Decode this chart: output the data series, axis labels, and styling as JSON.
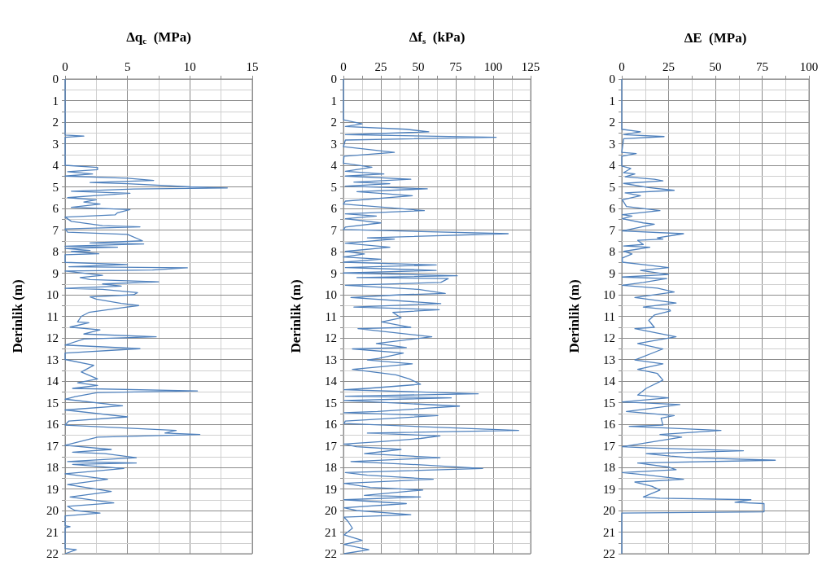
{
  "chart_data": [
    {
      "type": "line",
      "xlabel": "Δq$_{c}$  (MPa)",
      "ylabel": "Derinlik (m)",
      "grid": true,
      "marker": "none",
      "line_style": "solid",
      "xlim": [
        0,
        15
      ],
      "xticks": [
        0,
        {
          "value": 2.5,
          "label": null
        },
        5,
        {
          "value": 7.5,
          "label": null
        },
        10,
        {
          "value": 12.5,
          "label": null
        },
        15
      ],
      "ylim": [
        22,
        0
      ],
      "yticks": [
        0,
        {
          "value": 0.5,
          "label": null
        },
        1,
        {
          "value": 1.5,
          "label": null
        },
        2,
        {
          "value": 2.5,
          "label": null
        },
        3,
        {
          "value": 3.5,
          "label": null
        },
        4,
        {
          "value": 4.5,
          "label": null
        },
        5,
        {
          "value": 5.5,
          "label": null
        },
        6,
        {
          "value": 6.5,
          "label": null
        },
        7,
        {
          "value": 7.5,
          "label": null
        },
        8,
        {
          "value": 8.5,
          "label": null
        },
        9,
        {
          "value": 9.5,
          "label": null
        },
        10,
        {
          "value": 10.5,
          "label": null
        },
        11,
        {
          "value": 11.5,
          "label": null
        },
        12,
        {
          "value": 12.5,
          "label": null
        },
        13,
        {
          "value": 13.5,
          "label": null
        },
        14,
        {
          "value": 14.5,
          "label": null
        },
        15,
        {
          "value": 15.5,
          "label": null
        },
        16,
        {
          "value": 16.5,
          "label": null
        },
        17,
        {
          "value": 17.5,
          "label": null
        },
        18,
        {
          "value": 18.5,
          "label": null
        },
        19,
        {
          "value": 19.5,
          "label": null
        },
        20,
        {
          "value": 20.5,
          "label": null
        },
        21,
        {
          "value": 21.5,
          "label": null
        },
        22
      ],
      "series": [
        {
          "color": "#4f81bd",
          "x": [
            0,
            0,
            1.5,
            0,
            0,
            2.6,
            2.6,
            0.2,
            2.2,
            0,
            5,
            7.1,
            2,
            5,
            10,
            13,
            5.5,
            0.5,
            5.2,
            2.5,
            0.2,
            2.5,
            1.5,
            2.8,
            0.5,
            5.2,
            4.2,
            4,
            0,
            0.5,
            3,
            6,
            0,
            0.2,
            5,
            6.2,
            2,
            6.3,
            0,
            4.2,
            0,
            2,
            0.5,
            2.7,
            0,
            0,
            5,
            0.3,
            9.8,
            7,
            0,
            3,
            1.2,
            2,
            7.5,
            3,
            4.5,
            0,
            3,
            5.8,
            5.5,
            2,
            2.5,
            4.5,
            5.9,
            4.6,
            1.9,
            1.3,
            1,
            1.9,
            0.4,
            2.8,
            1.5,
            7.3,
            1.5,
            0,
            6,
            0,
            0,
            2.3,
            1.3,
            2.6,
            1,
            2.6,
            0.6,
            10.6,
            2.6,
            0.8,
            0,
            4.6,
            0,
            5,
            0.3,
            0,
            8.9,
            8,
            10.8,
            2.6,
            0,
            3.7,
            0.6,
            3.2,
            5.7,
            0.2,
            5.7,
            0.6,
            4.7,
            0,
            3.4,
            0.2,
            3.7,
            0.4,
            3.9,
            0.2,
            0.8,
            2.8,
            0,
            0,
            0.4,
            0,
            0,
            0.9,
            0
          ],
          "values": [
            0,
            2.6,
            2.65,
            2.7,
            4.0,
            4.1,
            4.2,
            4.3,
            4.4,
            4.5,
            4.6,
            4.7,
            4.8,
            4.85,
            5.0,
            5.05,
            5.1,
            5.2,
            5.3,
            5.4,
            5.5,
            5.6,
            5.7,
            5.8,
            5.95,
            6.05,
            6.2,
            6.3,
            6.4,
            6.6,
            6.8,
            6.85,
            6.95,
            7.1,
            7.2,
            7.5,
            7.6,
            7.65,
            7.75,
            7.8,
            7.85,
            7.95,
            8.0,
            8.1,
            8.15,
            8.5,
            8.6,
            8.7,
            8.75,
            8.85,
            8.9,
            9.1,
            9.2,
            9.3,
            9.4,
            9.5,
            9.6,
            9.7,
            9.75,
            9.9,
            10.0,
            10.1,
            10.2,
            10.4,
            10.5,
            10.6,
            10.82,
            11.0,
            11.26,
            11.3,
            11.5,
            11.63,
            11.82,
            11.95,
            12.05,
            12.33,
            12.5,
            12.7,
            13.0,
            13.27,
            13.58,
            13.9,
            14.08,
            14.2,
            14.34,
            14.46,
            14.53,
            14.72,
            14.84,
            15.15,
            15.34,
            15.66,
            15.85,
            16.04,
            16.29,
            16.41,
            16.48,
            16.6,
            16.98,
            17.17,
            17.3,
            17.36,
            17.55,
            17.73,
            17.8,
            17.86,
            18.05,
            18.3,
            18.55,
            18.8,
            19.12,
            19.37,
            19.65,
            19.81,
            20.0,
            20.12,
            20.25,
            20.7,
            20.75,
            20.8,
            21.76,
            21.82,
            22
          ]
        }
      ]
    },
    {
      "type": "line",
      "xlabel": "Δf$_{s}$  (kPa)",
      "ylabel": "Derinlik (m)",
      "grid": true,
      "marker": "none",
      "line_style": "solid",
      "xlim": [
        0,
        125
      ],
      "xticks": [
        0,
        {
          "value": 12.5,
          "label": null
        },
        25,
        {
          "value": 37.5,
          "label": null
        },
        50,
        {
          "value": 62.5,
          "label": null
        },
        75,
        {
          "value": 87.5,
          "label": null
        },
        100,
        {
          "value": 112.5,
          "label": null
        },
        125
      ],
      "ylim": [
        22,
        0
      ],
      "yticks": [
        0,
        {
          "value": 0.5,
          "label": null
        },
        1,
        {
          "value": 1.5,
          "label": null
        },
        2,
        {
          "value": 2.5,
          "label": null
        },
        3,
        {
          "value": 3.5,
          "label": null
        },
        4,
        {
          "value": 4.5,
          "label": null
        },
        5,
        {
          "value": 5.5,
          "label": null
        },
        6,
        {
          "value": 6.5,
          "label": null
        },
        7,
        {
          "value": 7.5,
          "label": null
        },
        8,
        {
          "value": 8.5,
          "label": null
        },
        9,
        {
          "value": 9.5,
          "label": null
        },
        10,
        {
          "value": 10.5,
          "label": null
        },
        11,
        {
          "value": 11.5,
          "label": null
        },
        12,
        {
          "value": 12.5,
          "label": null
        },
        13,
        {
          "value": 13.5,
          "label": null
        },
        14,
        {
          "value": 14.5,
          "label": null
        },
        15,
        {
          "value": 15.5,
          "label": null
        },
        16,
        {
          "value": 16.5,
          "label": null
        },
        17,
        {
          "value": 17.5,
          "label": null
        },
        18,
        {
          "value": 18.5,
          "label": null
        },
        19,
        {
          "value": 19.5,
          "label": null
        },
        20,
        {
          "value": 20.5,
          "label": null
        },
        21,
        {
          "value": 21.5,
          "label": null
        },
        22
      ],
      "series": [
        {
          "color": "#4f81bd",
          "x": [
            0,
            0,
            12.5,
            1.3,
            42,
            57,
            1.3,
            102,
            1.3,
            0,
            34,
            0.4,
            0,
            19,
            1.3,
            27,
            1.3,
            45,
            7,
            31,
            1.3,
            56,
            9,
            46,
            1.3,
            0,
            19,
            54,
            1.3,
            22,
            1.3,
            25,
            1.3,
            0,
            110,
            16,
            34,
            1.3,
            31,
            1.3,
            14,
            0,
            25,
            0,
            62,
            1.3,
            62,
            0,
            76,
            9,
            70,
            65,
            1.3,
            50,
            68,
            38,
            5,
            65,
            7,
            64,
            33,
            38.5,
            25.5,
            45,
            9.7,
            59,
            22,
            42,
            6,
            40,
            23.6,
            16,
            46,
            6,
            35,
            44,
            51.5,
            16,
            0.4,
            90,
            1.3,
            72,
            0.4,
            77.5,
            22.7,
            0.4,
            63,
            1.3,
            0.4,
            117,
            16,
            64.5,
            51.5,
            27,
            0.4,
            8.7,
            38.5,
            14,
            64.5,
            5,
            45,
            93,
            1.3,
            16,
            60,
            0.4,
            18,
            53,
            14,
            51.5,
            0.4,
            42,
            0.4,
            8.7,
            45,
            0.4,
            3,
            6,
            0.4,
            12.5,
            0.4,
            17,
            0.4
          ],
          "values": [
            0,
            1.89,
            2.08,
            2.2,
            2.33,
            2.45,
            2.58,
            2.7,
            2.83,
            3.14,
            3.4,
            3.58,
            3.9,
            4.09,
            4.28,
            4.4,
            4.5,
            4.65,
            4.78,
            4.85,
            4.97,
            5.09,
            5.22,
            5.41,
            5.66,
            5.8,
            5.9,
            6.1,
            6.25,
            6.35,
            6.48,
            6.67,
            6.86,
            6.98,
            7.17,
            7.36,
            7.42,
            7.61,
            7.8,
            7.99,
            8.11,
            8.25,
            8.35,
            8.49,
            8.62,
            8.74,
            8.87,
            8.99,
            9.12,
            9.2,
            9.25,
            9.43,
            9.56,
            9.75,
            9.94,
            10.0,
            10.13,
            10.41,
            10.57,
            10.69,
            10.82,
            11.07,
            11.26,
            11.51,
            11.57,
            11.95,
            12.26,
            12.45,
            12.51,
            12.7,
            12.95,
            13.02,
            13.2,
            13.46,
            13.71,
            13.9,
            14.15,
            14.34,
            14.4,
            14.59,
            14.7,
            14.78,
            14.9,
            15.16,
            15.41,
            15.47,
            15.6,
            15.85,
            15.97,
            16.29,
            16.41,
            16.54,
            16.66,
            16.8,
            16.92,
            17.04,
            17.17,
            17.36,
            17.55,
            17.73,
            17.86,
            18.05,
            18.24,
            18.36,
            18.55,
            18.74,
            18.93,
            19.05,
            19.3,
            19.37,
            19.5,
            19.68,
            19.87,
            20.0,
            20.19,
            20.31,
            20.5,
            20.82,
            21.13,
            21.38,
            21.57,
            21.82,
            22
          ]
        }
      ]
    },
    {
      "type": "line",
      "xlabel": "ΔE  (MPa)",
      "ylabel": "Derinlik (m)",
      "grid": true,
      "marker": "none",
      "line_style": "solid",
      "xlim": [
        0,
        100
      ],
      "xticks": [
        0,
        {
          "value": 12.5,
          "label": null
        },
        25,
        {
          "value": 37.5,
          "label": null
        },
        50,
        {
          "value": 62.5,
          "label": null
        },
        75,
        {
          "value": 87.5,
          "label": null
        },
        100
      ],
      "ylim": [
        22,
        0
      ],
      "yticks": [
        0,
        {
          "value": 0.5,
          "label": null
        },
        1,
        {
          "value": 1.5,
          "label": null
        },
        2,
        {
          "value": 2.5,
          "label": null
        },
        3,
        {
          "value": 3.5,
          "label": null
        },
        4,
        {
          "value": 4.5,
          "label": null
        },
        5,
        {
          "value": 5.5,
          "label": null
        },
        6,
        {
          "value": 6.5,
          "label": null
        },
        7,
        {
          "value": 7.5,
          "label": null
        },
        8,
        {
          "value": 8.5,
          "label": null
        },
        9,
        {
          "value": 9.5,
          "label": null
        },
        10,
        {
          "value": 10.5,
          "label": null
        },
        11,
        {
          "value": 11.5,
          "label": null
        },
        12,
        {
          "value": 12.5,
          "label": null
        },
        13,
        {
          "value": 13.5,
          "label": null
        },
        14,
        {
          "value": 14.5,
          "label": null
        },
        15,
        {
          "value": 15.5,
          "label": null
        },
        16,
        {
          "value": 16.5,
          "label": null
        },
        17,
        {
          "value": 17.5,
          "label": null
        },
        18,
        {
          "value": 18.5,
          "label": null
        },
        19,
        {
          "value": 19.5,
          "label": null
        },
        20,
        {
          "value": 20.5,
          "label": null
        },
        21,
        {
          "value": 21.5,
          "label": null
        },
        22
      ],
      "series": [
        {
          "color": "#4f81bd",
          "x": [
            0,
            0,
            10,
            1,
            22.6,
            1,
            0,
            7.7,
            0,
            0,
            4.8,
            1,
            7,
            1.8,
            17.4,
            22,
            1,
            14.4,
            28,
            1.8,
            10,
            0.3,
            2.5,
            20.4,
            0.3,
            5.5,
            0.3,
            11.5,
            17.4,
            0.3,
            33,
            19,
            22,
            8.5,
            11.5,
            1,
            15,
            1,
            5.5,
            0.3,
            0.3,
            13,
            25,
            10,
            25,
            0.3,
            24,
            11.5,
            0.3,
            19,
            28,
            7,
            29,
            11.5,
            25.6,
            26,
            17.4,
            14.4,
            17.4,
            7,
            29,
            8.5,
            22,
            7,
            22,
            8.5,
            19,
            22,
            13,
            8.5,
            25,
            0.3,
            31,
            13,
            2.5,
            28,
            21,
            22,
            4,
            53,
            20.4,
            32,
            0.3,
            14.4,
            65,
            13,
            26,
            37,
            82,
            8.5,
            25,
            29,
            0.3,
            14.4,
            33,
            7,
            16,
            20.4,
            11.5,
            20.4,
            69,
            60.5,
            76,
            76,
            0,
            0
          ],
          "values": [
            0,
            2.33,
            2.45,
            2.58,
            2.67,
            2.77,
            3.4,
            3.46,
            3.58,
            4.03,
            4.15,
            4.34,
            4.4,
            4.53,
            4.65,
            4.72,
            4.84,
            5.03,
            5.16,
            5.28,
            5.41,
            5.6,
            5.91,
            6.1,
            6.29,
            6.35,
            6.48,
            6.67,
            6.73,
            7.04,
            7.17,
            7.36,
            7.42,
            7.48,
            7.67,
            7.74,
            7.8,
            7.99,
            8.11,
            8.3,
            8.49,
            8.62,
            8.74,
            8.87,
            9.06,
            9.18,
            9.25,
            9.43,
            9.56,
            9.69,
            9.87,
            10.13,
            10.38,
            10.57,
            10.69,
            10.75,
            10.94,
            11.19,
            11.51,
            11.57,
            11.95,
            12.26,
            12.51,
            13.02,
            13.2,
            13.46,
            13.65,
            13.96,
            14.34,
            14.65,
            14.78,
            14.97,
            15.09,
            15.3,
            15.41,
            15.6,
            15.72,
            16.04,
            16.1,
            16.29,
            16.48,
            16.6,
            17.04,
            17.1,
            17.23,
            17.36,
            17.48,
            17.55,
            17.67,
            17.8,
            17.99,
            18.11,
            18.24,
            18.36,
            18.55,
            18.68,
            18.87,
            19.05,
            19.37,
            19.43,
            19.5,
            19.62,
            19.68,
            20.06,
            20.12,
            22
          ]
        }
      ]
    }
  ]
}
